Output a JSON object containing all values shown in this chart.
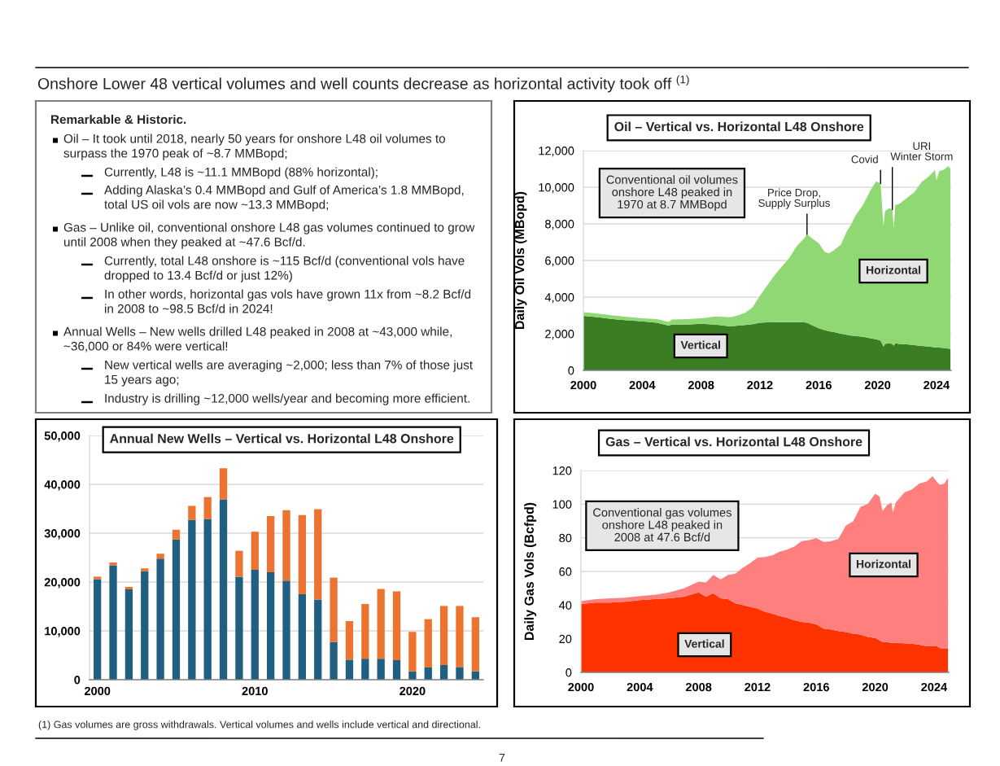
{
  "chart_data": [
    {
      "type": "other",
      "title": "Onshore Lower 48 vertical volumes and well counts decrease as horizontal activity took off $^{(1)}$",
      "subtitle": "Remarkable & Historic.",
      "annotations": [
        "Oil – It took until 2018, nearly 50 years for onshore L48 oil volumes to\nsurpass the 1970 peak of ~8.7 MMBopd;",
        "Currently, L48 is ~11.1 MMBopd (88% horizontal);",
        "Adding Alaska’s 0.4 MMBopd and Gulf of America’s 1.8 MMBopd,\ntotal US oil vols are now ~13.3 MMBopd;",
        "Gas – Unlike oil, conventional onshore L48 gas volumes continued to grow\nuntil 2008 when they peaked at ~47.6 Bcf/d.",
        "Currently, total L48 onshore is ~115 Bcf/d (conventional vols have\ndropped to 13.4 Bcf/d or just 12%)",
        "In other words, horizontal gas vols have grown 11x from ~8.2 Bcf/d\nin 2008 to ~98.5 Bcf/d in 2024!",
        "Annual Wells – New wells drilled L48 peaked in 2008 at ~43,000 while,\n~36,000 or 84% were vertical!",
        "New vertical wells are averaging ~2,000; less than 7% of those just\n15 years ago;",
        "Industry is drilling ~12,000 wells/year and becoming more efficient.",
        "(1) Gas volumes are gross withdrawals. Vertical volumes and wells include vertical and directional.",
        "7"
      ]
    },
    {
      "type": "area",
      "stacked": true,
      "title": "Oil – Vertical vs. Horizontal L48 Onshore",
      "ylabel": "Daily Oil Vols (MBopd)",
      "x": [
        2000,
        2001,
        2002,
        2003,
        2004,
        2005,
        2005.8,
        2006,
        2007,
        2008,
        2009,
        2010,
        2010.5,
        2011,
        2011.5,
        2012,
        2012.5,
        2013,
        2013.5,
        2014,
        2014.5,
        2015,
        2015.2,
        2015.6,
        2016,
        2016.4,
        2016.7,
        2017,
        2017.5,
        2017.9,
        2018.2,
        2018.5,
        2019,
        2019.5,
        2019.9,
        2020.2,
        2020.4,
        2020.5,
        2020.8,
        2021,
        2021.1,
        2021.2,
        2021.5,
        2022,
        2022.5,
        2023,
        2023.5,
        2023.9,
        2024,
        2024.2,
        2024.5,
        2024.8,
        2024.95
      ],
      "series": [
        {
          "name": "Vertical",
          "color": "#3b7d23",
          "values": [
            2980,
            2900,
            2800,
            2730,
            2680,
            2600,
            2450,
            2500,
            2500,
            2550,
            2500,
            2400,
            2450,
            2480,
            2520,
            2600,
            2620,
            2630,
            2630,
            2630,
            2630,
            2620,
            2600,
            2450,
            2300,
            2200,
            2130,
            2100,
            2000,
            1950,
            1900,
            1880,
            1830,
            1760,
            1700,
            1620,
            1300,
            1450,
            1480,
            1450,
            1350,
            1480,
            1450,
            1420,
            1380,
            1330,
            1300,
            1260,
            1250,
            1240,
            1220,
            1190,
            1180
          ]
        },
        {
          "name": "Horizontal",
          "color": "#8fd873",
          "values": [
            200,
            200,
            200,
            190,
            170,
            200,
            200,
            280,
            300,
            300,
            450,
            500,
            550,
            670,
            930,
            1480,
            2020,
            2570,
            3050,
            3520,
            4160,
            4580,
            4820,
            4730,
            4650,
            4270,
            4260,
            4450,
            4870,
            5630,
            6080,
            6580,
            7190,
            8050,
            8620,
            8580,
            6520,
            7250,
            7380,
            7330,
            6390,
            7540,
            7650,
            8000,
            8350,
            8960,
            9300,
            9690,
            9120,
            9650,
            9730,
            9970,
            9820
          ]
        }
      ],
      "xlim": [
        2000,
        2025
      ],
      "xticks": [
        2000,
        2004,
        2008,
        2012,
        2016,
        2020,
        2024
      ],
      "ylim": [
        0,
        12000
      ],
      "yticks": [
        0,
        {
          "value": 2000,
          "label": "2,000"
        },
        {
          "value": 4000,
          "label": "4,000"
        },
        {
          "value": 6000,
          "label": "6,000"
        },
        {
          "value": 8000,
          "label": "8,000"
        },
        {
          "value": 10000,
          "label": "10,000"
        },
        {
          "value": 12000,
          "label": "12,000"
        }
      ],
      "grid": "y",
      "annotations": [
        "Conventional oil volumes\nonshore L48 peaked in\n1970 at 8.7 MMBopd",
        {
          "text": "Price Drop,\nSupply Surplus",
          "x": 2015.2,
          "y": 7420
        },
        {
          "text": "Covid",
          "x": 2020.2,
          "y": 10200
        },
        {
          "text": "URI\nWinter Storm",
          "x": 2021,
          "y": 8780
        }
      ]
    },
    {
      "type": "bar",
      "stacked": true,
      "title": "Annual New Wells – Vertical vs. Horizontal L48 Onshore",
      "categories": [
        "2000",
        null,
        null,
        null,
        null,
        null,
        null,
        null,
        null,
        null,
        "2010",
        null,
        null,
        null,
        null,
        null,
        null,
        null,
        null,
        null,
        "2020",
        null,
        null,
        null,
        null
      ],
      "series": [
        {
          "color": "#1f5f82",
          "values": [
            20600,
            23400,
            18500,
            22200,
            24800,
            28700,
            32700,
            32900,
            36900,
            21100,
            22500,
            22000,
            20300,
            17500,
            16400,
            7700,
            4100,
            4300,
            4300,
            4000,
            1700,
            2500,
            3000,
            2600,
            1700
          ]
        },
        {
          "color": "#ed7430",
          "values": [
            500,
            600,
            500,
            600,
            1000,
            2000,
            2900,
            4500,
            6400,
            5300,
            7800,
            11500,
            14400,
            16200,
            18500,
            13200,
            7900,
            11200,
            14300,
            14100,
            8100,
            9900,
            12100,
            12500,
            11100
          ]
        }
      ],
      "ylim": [
        0,
        50000
      ],
      "yticks": [
        0,
        {
          "value": 10000,
          "label": "10,000"
        },
        {
          "value": 20000,
          "label": "20,000"
        },
        {
          "value": 30000,
          "label": "30,000"
        },
        {
          "value": 40000,
          "label": "40,000"
        },
        {
          "value": 50000,
          "label": "50,000"
        }
      ],
      "grid": "y"
    },
    {
      "type": "area",
      "stacked": true,
      "title": "Gas – Vertical vs. Horizontal L48 Onshore",
      "ylabel": "Daily Gas Vols (Bcfpd)",
      "x": [
        2000,
        2001,
        2002,
        2003,
        2004,
        2005,
        2006,
        2007,
        2008,
        2008.5,
        2009,
        2009.5,
        2010,
        2010.5,
        2011,
        2011.5,
        2012,
        2012.5,
        2013,
        2013.5,
        2014,
        2014.5,
        2015,
        2015.5,
        2016,
        2016.5,
        2017,
        2017.5,
        2018,
        2018.5,
        2019,
        2019.5,
        2020,
        2020.3,
        2020.5,
        2020.8,
        2021.1,
        2021.2,
        2021.4,
        2022,
        2022.5,
        2023,
        2023.5,
        2023.9,
        2024.2,
        2024.4,
        2024.7,
        2024.95
      ],
      "series": [
        {
          "name": "Vertical",
          "color": "#ff3300",
          "values": [
            40.6,
            41.5,
            41.5,
            42,
            43,
            43.5,
            44,
            45,
            47.5,
            45,
            47,
            44,
            43.5,
            41,
            40,
            39,
            38,
            36,
            35,
            33.5,
            32.5,
            31,
            30,
            29.5,
            28.5,
            26,
            25.5,
            24.5,
            24,
            23,
            22.5,
            21,
            20.5,
            19,
            18,
            18,
            17.5,
            17.5,
            17.5,
            17.3,
            17,
            16.5,
            15.5,
            15.5,
            15.5,
            14.5,
            14,
            14
          ]
        },
        {
          "name": "Horizontal",
          "color": "#ff7f7f",
          "values": [
            1.7,
            2,
            2.5,
            2.4,
            2.4,
            2.6,
            3.5,
            5,
            6.5,
            8.5,
            10.9,
            11.3,
            14.4,
            17.7,
            22.2,
            26,
            30.2,
            32.6,
            34.6,
            38.2,
            40.5,
            43.8,
            48,
            49.1,
            51.3,
            51.5,
            52.5,
            54.9,
            63.2,
            66.8,
            75.9,
            79.2,
            85.7,
            85.5,
            77.9,
            81.3,
            83.5,
            77.5,
            83.5,
            89.7,
            91.8,
            95.8,
            98,
            101.1,
            97.6,
            96.9,
            98.3,
            101.7
          ]
        }
      ],
      "xlim": [
        2000,
        2025
      ],
      "xticks": [
        2000,
        2004,
        2008,
        2012,
        2016,
        2020,
        2024
      ],
      "ylim": [
        0,
        120
      ],
      "yticks": [
        0,
        20,
        40,
        60,
        80,
        100,
        120
      ],
      "grid": "y",
      "annotations": [
        "Conventional gas volumes\nonshore L48 peaked in\n2008 at 47.6 Bcf/d"
      ]
    }
  ]
}
